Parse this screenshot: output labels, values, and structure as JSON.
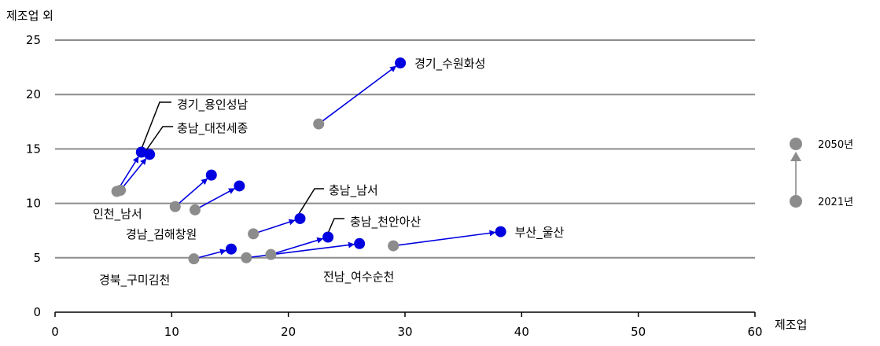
{
  "chart_data": {
    "type": "scatter",
    "xlabel": "제조업",
    "ylabel": "제조업 외",
    "xlim": [
      0,
      60
    ],
    "ylim": [
      0,
      25
    ],
    "xticks": [
      0,
      10,
      20,
      30,
      40,
      50,
      60
    ],
    "yticks": [
      0,
      5,
      10,
      15,
      20,
      25
    ],
    "grid": "horizontal",
    "colors": {
      "start_point": "#8c8c8c",
      "end_point": "#0000e0",
      "arrow": "#0000e0",
      "grid": "#8c8c8c",
      "legend_arrow": "#8c8c8c"
    },
    "legend": {
      "placement": "right",
      "start_label": "2021년",
      "end_label": "2050년"
    },
    "series": [
      {
        "label": "경기_수원화성",
        "start": [
          22.6,
          17.3
        ],
        "end": [
          29.6,
          22.9
        ]
      },
      {
        "label": "경기_용인성남",
        "start": [
          5.3,
          11.1
        ],
        "end": [
          7.4,
          14.7
        ]
      },
      {
        "label": "충남_대전세종",
        "start": [
          5.6,
          11.2
        ],
        "end": [
          8.1,
          14.5
        ]
      },
      {
        "label": "인천_남서",
        "start": [
          10.3,
          9.7
        ],
        "end": [
          13.4,
          12.6
        ]
      },
      {
        "label": "경남_김해창원",
        "start": [
          12.0,
          9.4
        ],
        "end": [
          15.8,
          11.6
        ]
      },
      {
        "label": "충남_남서",
        "start": [
          17.0,
          7.2
        ],
        "end": [
          21.0,
          8.6
        ]
      },
      {
        "label": "충남_천안아산",
        "start": [
          18.5,
          5.3
        ],
        "end": [
          23.4,
          6.9
        ]
      },
      {
        "label": "경북_구미김천",
        "start": [
          11.9,
          4.9
        ],
        "end": [
          15.1,
          5.8
        ]
      },
      {
        "label": "전남_여수순천",
        "start": [
          16.4,
          5.0
        ],
        "end": [
          26.1,
          6.3
        ]
      },
      {
        "label": "부산_울산",
        "start": [
          29.0,
          6.1
        ],
        "end": [
          38.2,
          7.4
        ]
      }
    ]
  }
}
